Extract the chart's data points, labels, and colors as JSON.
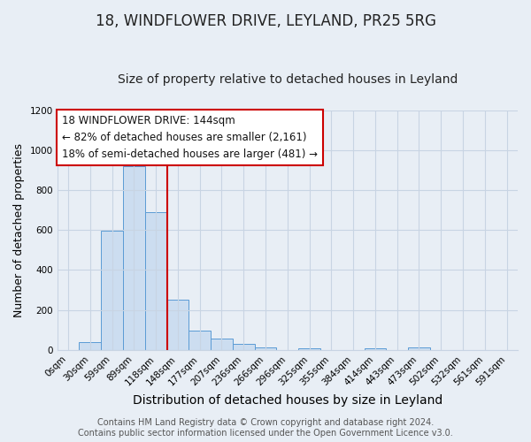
{
  "title": "18, WINDFLOWER DRIVE, LEYLAND, PR25 5RG",
  "subtitle": "Size of property relative to detached houses in Leyland",
  "xlabel": "Distribution of detached houses by size in Leyland",
  "ylabel": "Number of detached properties",
  "bar_labels": [
    "0sqm",
    "30sqm",
    "59sqm",
    "89sqm",
    "118sqm",
    "148sqm",
    "177sqm",
    "207sqm",
    "236sqm",
    "266sqm",
    "296sqm",
    "325sqm",
    "355sqm",
    "384sqm",
    "414sqm",
    "443sqm",
    "473sqm",
    "502sqm",
    "532sqm",
    "561sqm",
    "591sqm"
  ],
  "bar_values": [
    0,
    40,
    595,
    920,
    690,
    250,
    95,
    58,
    30,
    15,
    0,
    10,
    0,
    0,
    8,
    0,
    12,
    0,
    0,
    0,
    0
  ],
  "bar_color": "#ccddf0",
  "bar_edge_color": "#5b9bd5",
  "grid_color": "#c8d4e3",
  "background_color": "#e8eef5",
  "vline_color": "#cc0000",
  "annotation_line1": "18 WINDFLOWER DRIVE: 144sqm",
  "annotation_line2": "← 82% of detached houses are smaller (2,161)",
  "annotation_line3": "18% of semi-detached houses are larger (481) →",
  "annotation_box_color": "#ffffff",
  "annotation_box_edge": "#cc0000",
  "ylim": [
    0,
    1200
  ],
  "yticks": [
    0,
    200,
    400,
    600,
    800,
    1000,
    1200
  ],
  "footer_text": "Contains HM Land Registry data © Crown copyright and database right 2024.\nContains public sector information licensed under the Open Government Licence v3.0.",
  "title_fontsize": 12,
  "subtitle_fontsize": 10,
  "xlabel_fontsize": 10,
  "ylabel_fontsize": 9,
  "tick_fontsize": 7.5,
  "annotation_fontsize": 8.5,
  "footer_fontsize": 7
}
